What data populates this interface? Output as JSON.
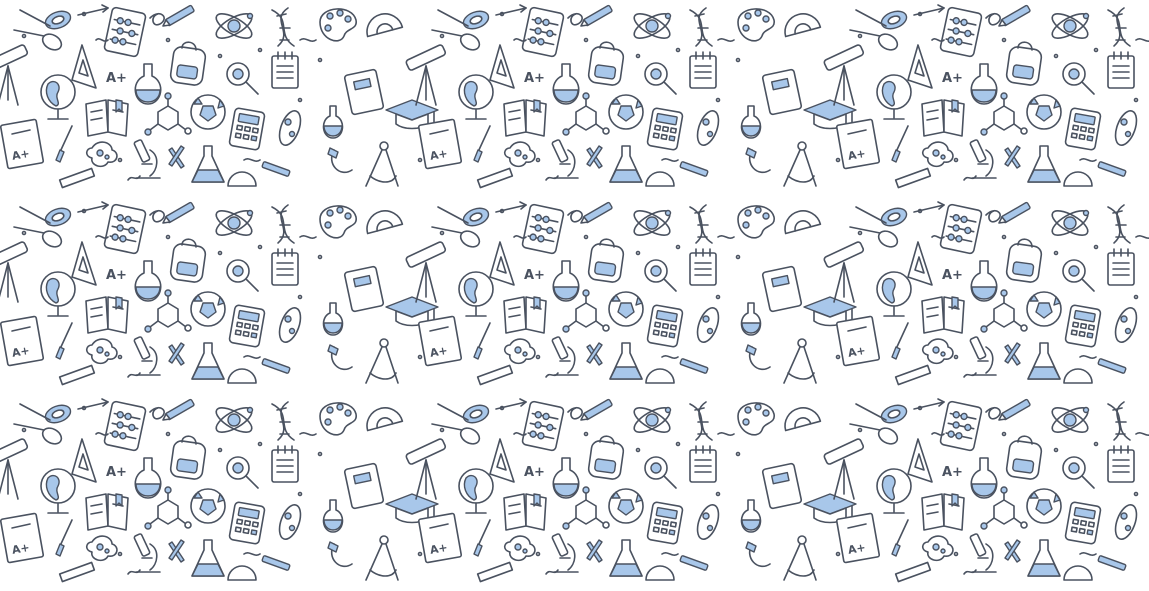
{
  "pattern": {
    "theme": "education and science doodles",
    "colors": {
      "background": "#ffffff",
      "line": "#4a5260",
      "accent": "#a8c7ea"
    },
    "grade_label": "A+",
    "icons": [
      "scissors-icon",
      "triangle-ruler-icon",
      "telescope-icon",
      "abacus-icon",
      "backpack-icon",
      "pencil-icon",
      "atom-icon",
      "dna-icon",
      "palette-icon",
      "protractor-icon",
      "globe-icon",
      "flask-icon",
      "magnifier-icon",
      "notepad-icon",
      "open-book-icon",
      "molecule-icon",
      "soccer-ball-icon",
      "calculator-icon",
      "test-paper-icon",
      "graduation-cap-icon",
      "compass-icon",
      "magnet-icon",
      "microscope-icon",
      "conical-flask-icon",
      "cell-icon",
      "ruler-icon",
      "brush-icon",
      "bacteria-icon",
      "textbook-icon"
    ]
  }
}
